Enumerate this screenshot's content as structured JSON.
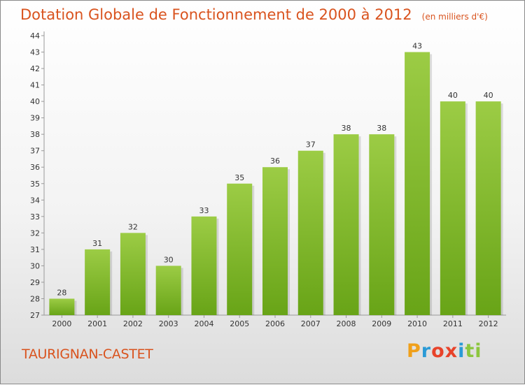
{
  "header": {
    "title": "Dotation Globale de Fonctionnement de 2000 à 2012",
    "unit": "(en milliers d'€)"
  },
  "footer": {
    "commune": "TAURIGNAN-CASTET",
    "logo_text": "Proxiti"
  },
  "chart_data": {
    "type": "bar",
    "categories": [
      "2000",
      "2001",
      "2002",
      "2003",
      "2004",
      "2005",
      "2006",
      "2007",
      "2008",
      "2009",
      "2010",
      "2011",
      "2012"
    ],
    "values": [
      28,
      31,
      32,
      30,
      33,
      35,
      36,
      37,
      38,
      38,
      43,
      40,
      40
    ],
    "ylim": [
      27,
      44
    ],
    "yticks": [
      27,
      28,
      29,
      30,
      31,
      32,
      33,
      34,
      35,
      36,
      37,
      38,
      39,
      40,
      41,
      42,
      43,
      44
    ],
    "grid": false,
    "bar_color": "#7fb92b",
    "title_color": "#d9531e"
  }
}
